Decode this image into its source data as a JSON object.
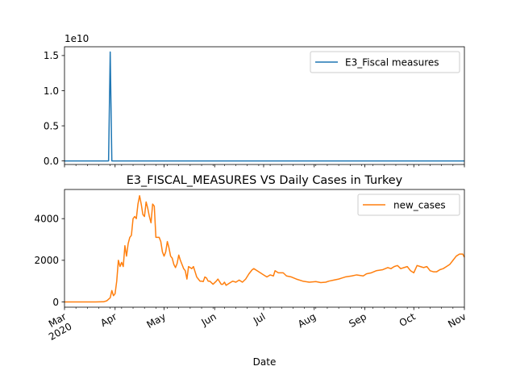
{
  "figure": {
    "title": "E3_FISCAL_MEASURES VS Daily Cases in Turkey",
    "xlabel": "Date"
  },
  "chart_data": [
    {
      "type": "line",
      "title": "",
      "xlabel": "",
      "ylabel": "",
      "xlim": [
        "2020-03-01",
        "2020-11-01"
      ],
      "ylim": [
        -0.05,
        1.625
      ],
      "y_multiplier_text": "1e10",
      "yticks": [
        0.0,
        0.5,
        1.0,
        1.5
      ],
      "ytick_labels": [
        "0.0",
        "0.5",
        "1.0",
        "1.5"
      ],
      "grid": false,
      "legend_position": "upper right",
      "series": [
        {
          "name": "E3_Fiscal measures",
          "color": "#1f77b4",
          "points": [
            [
              "2020-03-01",
              0.0
            ],
            [
              "2020-03-28",
              0.0
            ],
            [
              "2020-03-29",
              1.55
            ],
            [
              "2020-03-30",
              0.0
            ],
            [
              "2020-11-01",
              0.0
            ]
          ]
        }
      ]
    },
    {
      "type": "line",
      "title": "",
      "xlabel": "Date",
      "ylabel": "",
      "xlim": [
        "2020-03-01",
        "2020-11-01"
      ],
      "ylim": [
        -250,
        5400
      ],
      "yticks": [
        0,
        2000,
        4000
      ],
      "ytick_labels": [
        "0",
        "2000",
        "4000"
      ],
      "xticks": [
        "2020-03-01",
        "2020-04-01",
        "2020-05-01",
        "2020-06-01",
        "2020-07-01",
        "2020-08-01",
        "2020-09-01",
        "2020-10-01",
        "2020-11-01"
      ],
      "xtick_labels": [
        "Mar\n2020",
        "Apr",
        "May",
        "Jun",
        "Jul",
        "Aug",
        "Sep",
        "Oct",
        "Nov"
      ],
      "grid": false,
      "legend_position": "upper right",
      "series": [
        {
          "name": "new_cases",
          "color": "#ff7f0e",
          "points": [
            [
              "2020-03-01",
              0
            ],
            [
              "2020-03-10",
              0
            ],
            [
              "2020-03-20",
              0
            ],
            [
              "2020-03-25",
              10
            ],
            [
              "2020-03-27",
              60
            ],
            [
              "2020-03-29",
              200
            ],
            [
              "2020-03-30",
              550
            ],
            [
              "2020-03-31",
              300
            ],
            [
              "2020-04-01",
              400
            ],
            [
              "2020-04-02",
              1000
            ],
            [
              "2020-04-03",
              2000
            ],
            [
              "2020-04-04",
              1700
            ],
            [
              "2020-04-05",
              1900
            ],
            [
              "2020-04-06",
              1700
            ],
            [
              "2020-04-07",
              2700
            ],
            [
              "2020-04-08",
              2200
            ],
            [
              "2020-04-09",
              2800
            ],
            [
              "2020-04-10",
              3100
            ],
            [
              "2020-04-11",
              3200
            ],
            [
              "2020-04-12",
              4000
            ],
            [
              "2020-04-13",
              4100
            ],
            [
              "2020-04-14",
              4000
            ],
            [
              "2020-04-15",
              4700
            ],
            [
              "2020-04-16",
              5100
            ],
            [
              "2020-04-17",
              4700
            ],
            [
              "2020-04-18",
              4200
            ],
            [
              "2020-04-19",
              4100
            ],
            [
              "2020-04-20",
              4800
            ],
            [
              "2020-04-21",
              4500
            ],
            [
              "2020-04-22",
              4100
            ],
            [
              "2020-04-23",
              3800
            ],
            [
              "2020-04-24",
              4700
            ],
            [
              "2020-04-25",
              4600
            ],
            [
              "2020-04-26",
              3100
            ],
            [
              "2020-04-27",
              3100
            ],
            [
              "2020-04-28",
              3100
            ],
            [
              "2020-04-29",
              2900
            ],
            [
              "2020-04-30",
              2400
            ],
            [
              "2020-05-01",
              2200
            ],
            [
              "2020-05-02",
              2400
            ],
            [
              "2020-05-03",
              2900
            ],
            [
              "2020-05-04",
              2600
            ],
            [
              "2020-05-05",
              2200
            ],
            [
              "2020-05-06",
              2100
            ],
            [
              "2020-05-07",
              1800
            ],
            [
              "2020-05-08",
              1650
            ],
            [
              "2020-05-09",
              1850
            ],
            [
              "2020-05-10",
              2250
            ],
            [
              "2020-05-11",
              2000
            ],
            [
              "2020-05-12",
              1800
            ],
            [
              "2020-05-13",
              1600
            ],
            [
              "2020-05-14",
              1500
            ],
            [
              "2020-05-15",
              1100
            ],
            [
              "2020-05-16",
              1700
            ],
            [
              "2020-05-17",
              1650
            ],
            [
              "2020-05-18",
              1600
            ],
            [
              "2020-05-19",
              1700
            ],
            [
              "2020-05-20",
              1450
            ],
            [
              "2020-05-21",
              1200
            ],
            [
              "2020-05-22",
              1100
            ],
            [
              "2020-05-23",
              1000
            ],
            [
              "2020-05-24",
              1000
            ],
            [
              "2020-05-25",
              980
            ],
            [
              "2020-05-26",
              1200
            ],
            [
              "2020-05-27",
              1150
            ],
            [
              "2020-05-28",
              1000
            ],
            [
              "2020-05-29",
              1000
            ],
            [
              "2020-05-31",
              850
            ],
            [
              "2020-06-02",
              1000
            ],
            [
              "2020-06-03",
              1100
            ],
            [
              "2020-06-05",
              850
            ],
            [
              "2020-06-06",
              850
            ],
            [
              "2020-06-07",
              950
            ],
            [
              "2020-06-08",
              800
            ],
            [
              "2020-06-10",
              900
            ],
            [
              "2020-06-12",
              1000
            ],
            [
              "2020-06-14",
              950
            ],
            [
              "2020-06-16",
              1050
            ],
            [
              "2020-06-18",
              950
            ],
            [
              "2020-06-20",
              1100
            ],
            [
              "2020-06-22",
              1350
            ],
            [
              "2020-06-24",
              1550
            ],
            [
              "2020-06-25",
              1600
            ],
            [
              "2020-06-27",
              1500
            ],
            [
              "2020-06-29",
              1400
            ],
            [
              "2020-07-01",
              1300
            ],
            [
              "2020-07-03",
              1200
            ],
            [
              "2020-07-05",
              1300
            ],
            [
              "2020-07-07",
              1250
            ],
            [
              "2020-07-08",
              1500
            ],
            [
              "2020-07-10",
              1400
            ],
            [
              "2020-07-13",
              1400
            ],
            [
              "2020-07-15",
              1250
            ],
            [
              "2020-07-18",
              1200
            ],
            [
              "2020-07-21",
              1100
            ],
            [
              "2020-07-25",
              1000
            ],
            [
              "2020-07-29",
              950
            ],
            [
              "2020-08-02",
              980
            ],
            [
              "2020-08-05",
              930
            ],
            [
              "2020-08-08",
              950
            ],
            [
              "2020-08-10",
              1000
            ],
            [
              "2020-08-13",
              1050
            ],
            [
              "2020-08-16",
              1100
            ],
            [
              "2020-08-18",
              1150
            ],
            [
              "2020-08-20",
              1200
            ],
            [
              "2020-08-24",
              1250
            ],
            [
              "2020-08-27",
              1300
            ],
            [
              "2020-08-31",
              1250
            ],
            [
              "2020-09-02",
              1350
            ],
            [
              "2020-09-05",
              1400
            ],
            [
              "2020-09-08",
              1500
            ],
            [
              "2020-09-12",
              1550
            ],
            [
              "2020-09-15",
              1650
            ],
            [
              "2020-09-17",
              1600
            ],
            [
              "2020-09-19",
              1700
            ],
            [
              "2020-09-21",
              1750
            ],
            [
              "2020-09-23",
              1600
            ],
            [
              "2020-09-25",
              1650
            ],
            [
              "2020-09-27",
              1700
            ],
            [
              "2020-09-29",
              1500
            ],
            [
              "2020-10-01",
              1400
            ],
            [
              "2020-10-03",
              1750
            ],
            [
              "2020-10-05",
              1700
            ],
            [
              "2020-10-07",
              1650
            ],
            [
              "2020-10-09",
              1700
            ],
            [
              "2020-10-11",
              1500
            ],
            [
              "2020-10-13",
              1450
            ],
            [
              "2020-10-15",
              1450
            ],
            [
              "2020-10-17",
              1550
            ],
            [
              "2020-10-19",
              1600
            ],
            [
              "2020-10-21",
              1700
            ],
            [
              "2020-10-23",
              1800
            ],
            [
              "2020-10-25",
              2000
            ],
            [
              "2020-10-27",
              2200
            ],
            [
              "2020-10-29",
              2300
            ],
            [
              "2020-10-31",
              2300
            ],
            [
              "2020-11-01",
              2150
            ]
          ]
        }
      ]
    }
  ]
}
